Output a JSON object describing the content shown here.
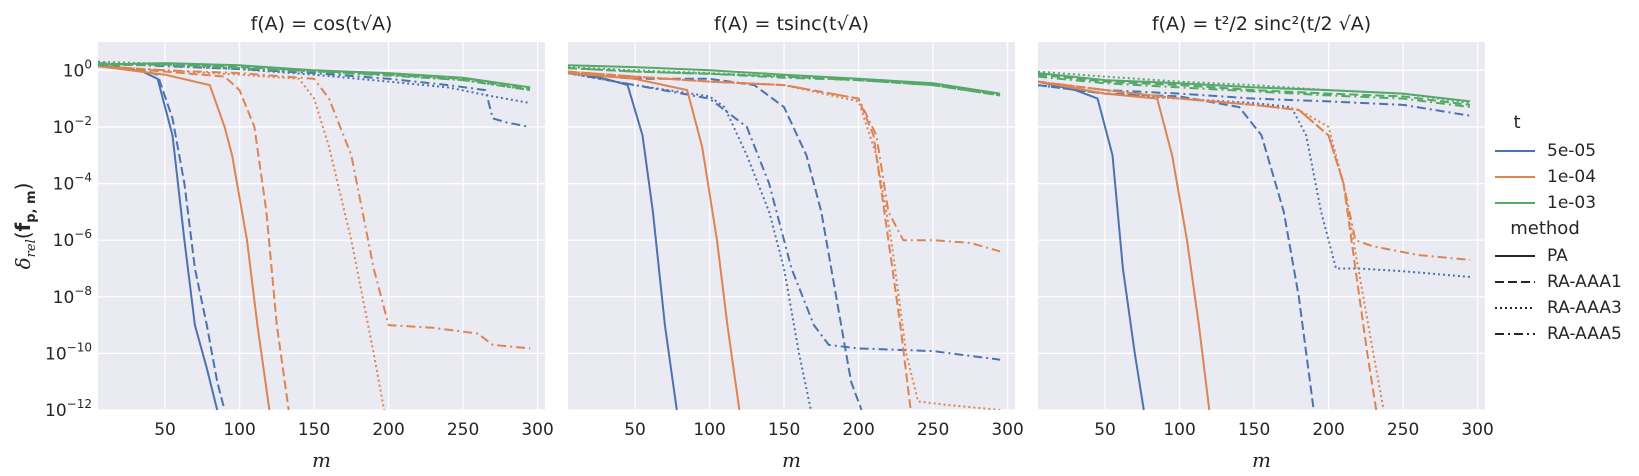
{
  "chart_data": [
    {
      "type": "line",
      "title": "f(A) = cos(t√A)",
      "xlabel": "m",
      "ylabel": "δrel(fp, m)",
      "xlim": [
        5,
        305
      ],
      "ylim": [
        1e-12,
        10
      ],
      "yscale": "log",
      "xticks": [
        "50",
        "100",
        "150",
        "200",
        "250",
        "300"
      ],
      "yticks": [
        "10^0",
        "10^-2",
        "10^-4",
        "10^-6",
        "10^-8",
        "10^-10",
        "10^-12"
      ],
      "grid": true,
      "series": [
        {
          "t": "5e-05",
          "method": "PA",
          "x": [
            5,
            20,
            35,
            45,
            55,
            63,
            70,
            78,
            85
          ],
          "y": [
            1.5,
            1.2,
            0.9,
            0.5,
            0.005,
            1e-06,
            1e-09,
            3e-11,
            1e-12
          ]
        },
        {
          "t": "5e-05",
          "method": "RA-AAA1",
          "x": [
            5,
            20,
            35,
            45,
            55,
            63,
            70,
            78,
            85,
            90
          ],
          "y": [
            1.5,
            1.3,
            1.0,
            0.7,
            0.02,
            0.0001,
            1e-07,
            1e-09,
            1e-11,
            1e-12
          ]
        },
        {
          "t": "5e-05",
          "method": "RA-AAA3",
          "x": [
            5,
            50,
            100,
            150,
            200,
            240,
            270,
            295
          ],
          "y": [
            2.0,
            1.5,
            1.1,
            0.7,
            0.4,
            0.25,
            0.12,
            0.07
          ]
        },
        {
          "t": "5e-05",
          "method": "RA-AAA5",
          "x": [
            5,
            50,
            100,
            150,
            200,
            240,
            265,
            270,
            280,
            295
          ],
          "y": [
            1.8,
            1.4,
            1.1,
            0.8,
            0.5,
            0.3,
            0.2,
            0.02,
            0.014,
            0.01
          ]
        },
        {
          "t": "1e-04",
          "method": "PA",
          "x": [
            5,
            50,
            80,
            90,
            95,
            105,
            112,
            120
          ],
          "y": [
            1.4,
            0.7,
            0.3,
            0.01,
            0.001,
            1e-06,
            1e-09,
            1e-12
          ]
        },
        {
          "t": "1e-04",
          "method": "RA-AAA1",
          "x": [
            5,
            50,
            90,
            100,
            110,
            118,
            125,
            133
          ],
          "y": [
            1.4,
            0.9,
            0.6,
            0.2,
            0.01,
            1e-05,
            1e-09,
            1e-12
          ]
        },
        {
          "t": "1e-04",
          "method": "RA-AAA3",
          "x": [
            5,
            50,
            100,
            140,
            150,
            160,
            175,
            190,
            197
          ],
          "y": [
            1.4,
            1.0,
            0.7,
            0.5,
            0.1,
            0.002,
            1e-06,
            1e-10,
            1e-12
          ]
        },
        {
          "t": "1e-04",
          "method": "RA-AAA5",
          "x": [
            5,
            50,
            100,
            150,
            160,
            175,
            190,
            200,
            230,
            260,
            270,
            295
          ],
          "y": [
            1.4,
            1.0,
            0.8,
            0.5,
            0.1,
            0.001,
            1e-07,
            1e-09,
            8e-10,
            5e-10,
            2e-10,
            1.5e-10
          ]
        },
        {
          "t": "1e-03",
          "method": "PA",
          "x": [
            5,
            50,
            100,
            150,
            200,
            250,
            295
          ],
          "y": [
            1.6,
            1.8,
            1.5,
            1.0,
            0.8,
            0.55,
            0.25
          ]
        },
        {
          "t": "1e-03",
          "method": "RA-AAA1",
          "x": [
            5,
            50,
            100,
            150,
            200,
            250,
            295
          ],
          "y": [
            1.5,
            1.6,
            1.3,
            0.95,
            0.7,
            0.5,
            0.22
          ]
        },
        {
          "t": "1e-03",
          "method": "RA-AAA3",
          "x": [
            5,
            50,
            100,
            150,
            200,
            250,
            295
          ],
          "y": [
            2.0,
            1.7,
            1.2,
            0.9,
            0.7,
            0.45,
            0.2
          ]
        },
        {
          "t": "1e-03",
          "method": "RA-AAA5",
          "x": [
            5,
            50,
            100,
            150,
            200,
            250,
            295
          ],
          "y": [
            1.7,
            1.5,
            1.2,
            0.9,
            0.65,
            0.45,
            0.2
          ]
        }
      ]
    },
    {
      "type": "line",
      "title": "f(A) = tsinc(t√A)",
      "xlabel": "m",
      "ylabel": "",
      "xlim": [
        5,
        305
      ],
      "ylim": [
        1e-12,
        10
      ],
      "yscale": "log",
      "xticks": [
        "50",
        "100",
        "150",
        "200",
        "250",
        "300"
      ],
      "grid": true,
      "series": [
        {
          "t": "5e-05",
          "method": "PA",
          "x": [
            5,
            30,
            45,
            55,
            62,
            70,
            78
          ],
          "y": [
            0.9,
            0.5,
            0.3,
            0.005,
            1e-05,
            1e-09,
            1e-12
          ]
        },
        {
          "t": "5e-05",
          "method": "RA-AAA1",
          "x": [
            5,
            50,
            100,
            130,
            150,
            165,
            175,
            185,
            195,
            202
          ],
          "y": [
            0.8,
            0.5,
            0.5,
            0.3,
            0.05,
            0.001,
            1e-05,
            1e-08,
            1e-11,
            1e-12
          ]
        },
        {
          "t": "5e-05",
          "method": "RA-AAA3",
          "x": [
            5,
            50,
            100,
            110,
            125,
            140,
            150,
            160,
            168
          ],
          "y": [
            0.8,
            0.3,
            0.12,
            0.05,
            0.001,
            1e-05,
            1e-07,
            1e-10,
            1e-12
          ]
        },
        {
          "t": "5e-05",
          "method": "RA-AAA5",
          "x": [
            5,
            50,
            100,
            125,
            140,
            155,
            170,
            180,
            200,
            250,
            295
          ],
          "y": [
            0.8,
            0.3,
            0.1,
            0.01,
            0.0001,
            1e-07,
            1e-09,
            2e-10,
            1.5e-10,
            1.2e-10,
            6e-11
          ]
        },
        {
          "t": "1e-04",
          "method": "PA",
          "x": [
            5,
            50,
            85,
            95,
            105,
            112,
            120
          ],
          "y": [
            0.8,
            0.5,
            0.2,
            0.002,
            1e-06,
            1e-09,
            1e-12
          ]
        },
        {
          "t": "1e-04",
          "method": "RA-AAA1",
          "x": [
            5,
            50,
            100,
            150,
            200,
            210,
            220,
            228,
            235
          ],
          "y": [
            0.9,
            0.6,
            0.4,
            0.3,
            0.1,
            0.005,
            1e-06,
            1e-09,
            1e-12
          ]
        },
        {
          "t": "1e-04",
          "method": "RA-AAA3",
          "x": [
            5,
            50,
            100,
            150,
            200,
            212,
            222,
            232,
            240,
            260,
            295
          ],
          "y": [
            0.9,
            0.6,
            0.4,
            0.3,
            0.08,
            0.001,
            1e-06,
            1e-10,
            2e-12,
            1.5e-12,
            1e-12
          ]
        },
        {
          "t": "1e-04",
          "method": "RA-AAA5",
          "x": [
            5,
            50,
            100,
            150,
            200,
            212,
            220,
            230,
            250,
            275,
            295
          ],
          "y": [
            0.9,
            0.6,
            0.4,
            0.3,
            0.1,
            0.005,
            1e-05,
            1e-06,
            1e-06,
            8e-07,
            4e-07
          ]
        },
        {
          "t": "1e-03",
          "method": "PA",
          "x": [
            5,
            50,
            100,
            150,
            200,
            250,
            295
          ],
          "y": [
            1.5,
            1.3,
            1.0,
            0.7,
            0.5,
            0.35,
            0.15
          ]
        },
        {
          "t": "1e-03",
          "method": "RA-AAA1",
          "x": [
            5,
            50,
            100,
            150,
            200,
            250,
            295
          ],
          "y": [
            1.2,
            0.9,
            0.75,
            0.6,
            0.45,
            0.3,
            0.13
          ]
        },
        {
          "t": "1e-03",
          "method": "RA-AAA3",
          "x": [
            5,
            50,
            100,
            150,
            200,
            250,
            295
          ],
          "y": [
            1.3,
            1.0,
            0.8,
            0.6,
            0.45,
            0.3,
            0.14
          ]
        },
        {
          "t": "1e-03",
          "method": "RA-AAA5",
          "x": [
            5,
            50,
            100,
            150,
            200,
            250,
            295
          ],
          "y": [
            1.2,
            0.9,
            0.75,
            0.55,
            0.45,
            0.3,
            0.13
          ]
        }
      ]
    },
    {
      "type": "line",
      "title": "f(A) = t²/2 sinc²(t/2 √A)",
      "xlabel": "m",
      "ylabel": "",
      "xlim": [
        5,
        305
      ],
      "ylim": [
        1e-12,
        10
      ],
      "yscale": "log",
      "xticks": [
        "50",
        "100",
        "150",
        "200",
        "250",
        "300"
      ],
      "grid": true,
      "series": [
        {
          "t": "5e-05",
          "method": "PA",
          "x": [
            5,
            30,
            45,
            55,
            62,
            70,
            76
          ],
          "y": [
            0.4,
            0.2,
            0.1,
            0.001,
            1e-07,
            1e-10,
            1e-12
          ]
        },
        {
          "t": "5e-05",
          "method": "RA-AAA1",
          "x": [
            5,
            50,
            100,
            140,
            155,
            170,
            180,
            190
          ],
          "y": [
            0.3,
            0.15,
            0.12,
            0.05,
            0.005,
            1e-05,
            1e-08,
            1e-12
          ]
        },
        {
          "t": "5e-05",
          "method": "RA-AAA3",
          "x": [
            5,
            50,
            100,
            150,
            175,
            185,
            195,
            205,
            220,
            250,
            295
          ],
          "y": [
            0.3,
            0.15,
            0.1,
            0.07,
            0.05,
            0.005,
            1e-05,
            1e-07,
            1e-07,
            8e-08,
            5e-08
          ]
        },
        {
          "t": "5e-05",
          "method": "RA-AAA5",
          "x": [
            5,
            50,
            100,
            150,
            200,
            250,
            295
          ],
          "y": [
            0.4,
            0.2,
            0.15,
            0.1,
            0.08,
            0.06,
            0.025
          ]
        },
        {
          "t": "1e-04",
          "method": "PA",
          "x": [
            5,
            50,
            85,
            95,
            105,
            113,
            120
          ],
          "y": [
            0.4,
            0.15,
            0.1,
            0.001,
            1e-06,
            1e-09,
            1e-12
          ]
        },
        {
          "t": "1e-04",
          "method": "RA-AAA1",
          "x": [
            5,
            50,
            100,
            150,
            180,
            200,
            210,
            218,
            226,
            232
          ],
          "y": [
            0.4,
            0.2,
            0.1,
            0.06,
            0.04,
            0.005,
            0.0001,
            1e-07,
            1e-10,
            1e-12
          ]
        },
        {
          "t": "1e-04",
          "method": "RA-AAA3",
          "x": [
            5,
            50,
            100,
            150,
            180,
            200,
            210,
            220,
            230,
            237
          ],
          "y": [
            0.4,
            0.2,
            0.1,
            0.06,
            0.04,
            0.01,
            0.0001,
            1e-07,
            1e-10,
            1e-12
          ]
        },
        {
          "t": "1e-04",
          "method": "RA-AAA5",
          "x": [
            5,
            50,
            100,
            150,
            180,
            200,
            210,
            218,
            230,
            260,
            295
          ],
          "y": [
            0.4,
            0.2,
            0.1,
            0.06,
            0.04,
            0.005,
            0.0001,
            1e-06,
            6e-07,
            3e-07,
            2e-07
          ]
        },
        {
          "t": "1e-03",
          "method": "PA",
          "x": [
            5,
            50,
            100,
            150,
            200,
            250,
            295
          ],
          "y": [
            0.8,
            0.45,
            0.35,
            0.25,
            0.2,
            0.15,
            0.08
          ]
        },
        {
          "t": "1e-03",
          "method": "RA-AAA1",
          "x": [
            5,
            50,
            100,
            150,
            200,
            250,
            295
          ],
          "y": [
            0.7,
            0.4,
            0.3,
            0.2,
            0.15,
            0.12,
            0.06
          ]
        },
        {
          "t": "1e-03",
          "method": "RA-AAA3",
          "x": [
            5,
            50,
            100,
            150,
            200,
            250,
            295
          ],
          "y": [
            0.9,
            0.6,
            0.4,
            0.3,
            0.2,
            0.15,
            0.07
          ]
        },
        {
          "t": "1e-03",
          "method": "RA-AAA5",
          "x": [
            5,
            50,
            100,
            150,
            200,
            250,
            295
          ],
          "y": [
            0.6,
            0.35,
            0.25,
            0.18,
            0.13,
            0.1,
            0.05
          ]
        }
      ]
    }
  ],
  "legend": {
    "placement": "right",
    "hue_title": "t",
    "hue_entries": [
      {
        "label": "5e-05",
        "color": "#4c72b0"
      },
      {
        "label": "1e-04",
        "color": "#dd8452"
      },
      {
        "label": "1e-03",
        "color": "#55a868"
      }
    ],
    "style_title": "method",
    "style_entries": [
      {
        "label": "PA",
        "dash": "solid"
      },
      {
        "label": "RA-AAA1",
        "dash": "dashed"
      },
      {
        "label": "RA-AAA3",
        "dash": "dotted"
      },
      {
        "label": "RA-AAA5",
        "dash": "dashdot"
      }
    ]
  },
  "colors": {
    "5e-05": "#4c72b0",
    "1e-04": "#dd8452",
    "1e-03": "#55a868",
    "panel_background": "#eaeaf2",
    "grid": "#ffffff"
  }
}
